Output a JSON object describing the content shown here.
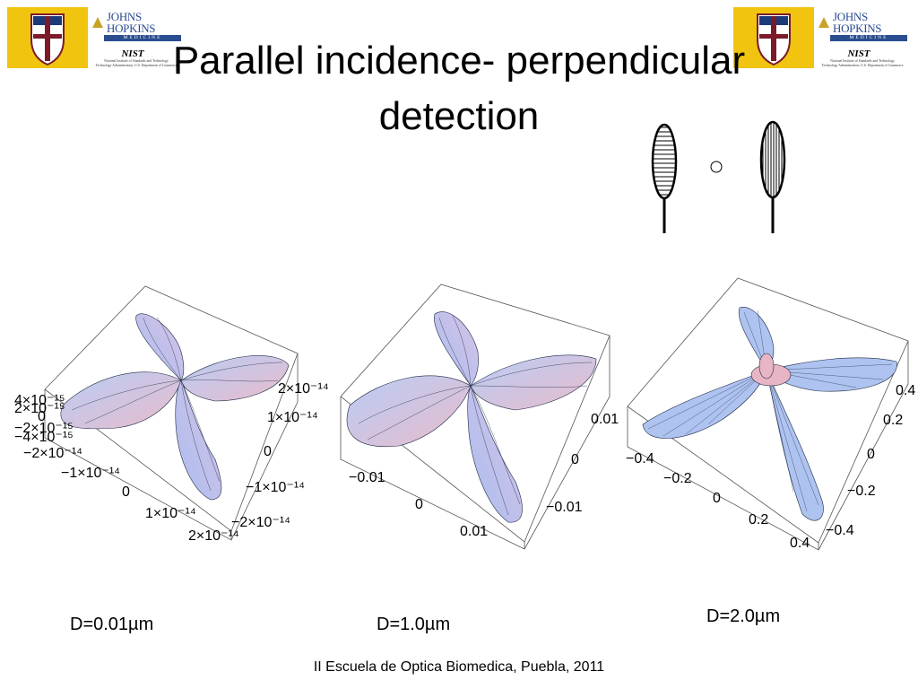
{
  "slide": {
    "title_line1": "Parallel incidence- perpendicular",
    "title_line2": "detection",
    "footer": "II Escuela de Optica Biomedica, Puebla, 2011"
  },
  "logos": {
    "jh_name": "JOHNS HOPKINS",
    "jh_medicine": "MEDICINE",
    "nist": "NIST",
    "nist_sub1": "National Institute of Standards and Technology",
    "nist_sub2": "Technology Administration, U.S. Department of Commerce"
  },
  "plots": [
    {
      "caption": "D=0.01µm",
      "ticks_left": [
        "4×10⁻¹⁵",
        "2×10⁻¹⁵",
        "0",
        "−2×10⁻¹⁵",
        "−4×10⁻¹⁵"
      ],
      "ticks_front": [
        "−2×10⁻¹⁴",
        "−1×10⁻¹⁴",
        "0",
        "1×10⁻¹⁴",
        "2×10⁻¹⁴"
      ],
      "ticks_right": [
        "2×10⁻¹⁴",
        "1×10⁻¹⁴",
        "0",
        "−1×10⁻¹⁴",
        "−2×10⁻¹⁴"
      ]
    },
    {
      "caption": "D=1.0µm",
      "ticks_front": [
        "−0.01",
        "0",
        "0.01"
      ],
      "ticks_right": [
        "0.01",
        "0",
        "−0.01"
      ]
    },
    {
      "caption": "D=2.0µm",
      "ticks_front": [
        "−0.4",
        "−0.2",
        "0",
        "0.2",
        "0.4"
      ],
      "ticks_right": [
        "0.4",
        "0.2",
        "0",
        "−0.2",
        "−0.4"
      ]
    }
  ],
  "colors": {
    "lobe_blue": "#aec3f0",
    "lobe_pink": "#e9b9c9",
    "lobe_edge": "#1e2a44",
    "shield_gold": "#f1c40f",
    "jh_blue": "#2a4d8f"
  }
}
